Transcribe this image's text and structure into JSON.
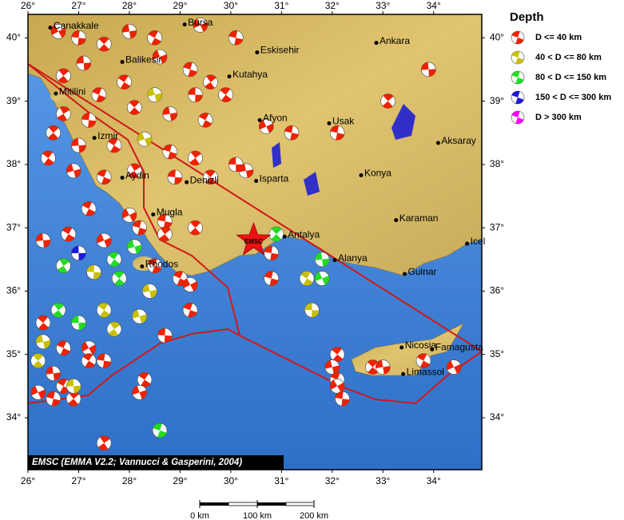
{
  "map": {
    "title": "Depth",
    "credit": "EMSC (EMMA V2.2; Vannucci & Gasperini, 2004)",
    "star_label": "EMSC",
    "xlim": [
      26,
      34.95
    ],
    "ylim": [
      33.18,
      40.37
    ],
    "xticks": [
      {
        "value": 26,
        "label": "26°"
      },
      {
        "value": 27,
        "label": "27°"
      },
      {
        "value": 28,
        "label": "28°"
      },
      {
        "value": 29,
        "label": "29°"
      },
      {
        "value": 30,
        "label": "30°"
      },
      {
        "value": 31,
        "label": "31°"
      },
      {
        "value": 32,
        "label": "32°"
      },
      {
        "value": 33,
        "label": "33°"
      },
      {
        "value": 34,
        "label": "34°"
      }
    ],
    "yticks": [
      {
        "value": 34,
        "label": "34°"
      },
      {
        "value": 35,
        "label": "35°"
      },
      {
        "value": 36,
        "label": "36°"
      },
      {
        "value": 37,
        "label": "37°"
      },
      {
        "value": 38,
        "label": "38°"
      },
      {
        "value": 39,
        "label": "39°"
      },
      {
        "value": 40,
        "label": "40°"
      }
    ],
    "depth_classes": [
      {
        "label": "D <= 40 km",
        "color": "#ee2200"
      },
      {
        "label": "40 < D <= 80 km",
        "color": "#c8c000"
      },
      {
        "label": "80 < D <= 150 km",
        "color": "#22dd22"
      },
      {
        "label": "150 < D <= 300 km",
        "color": "#1a1ad8"
      },
      {
        "label": "D > 300 km",
        "color": "#ff00ff"
      }
    ],
    "scale_bar": [
      "0 km",
      "100 km",
      "200 km"
    ],
    "cities": [
      {
        "name": "Canakkale",
        "lon": 26.44,
        "lat": 40.16
      },
      {
        "name": "Bursa",
        "lon": 29.09,
        "lat": 40.21
      },
      {
        "name": "Balikesir",
        "lon": 27.86,
        "lat": 39.62
      },
      {
        "name": "Eskisehir",
        "lon": 30.52,
        "lat": 39.77
      },
      {
        "name": "Ankara",
        "lon": 32.87,
        "lat": 39.92
      },
      {
        "name": "Kutahya",
        "lon": 29.97,
        "lat": 39.39
      },
      {
        "name": "Mitilini",
        "lon": 26.55,
        "lat": 39.12
      },
      {
        "name": "Afyon",
        "lon": 30.57,
        "lat": 38.7
      },
      {
        "name": "Usak",
        "lon": 31.94,
        "lat": 38.65
      },
      {
        "name": "Aksaray",
        "lon": 34.09,
        "lat": 38.34
      },
      {
        "name": "Izmir",
        "lon": 27.31,
        "lat": 38.42
      },
      {
        "name": "Aydin",
        "lon": 27.86,
        "lat": 37.79
      },
      {
        "name": "Denizli",
        "lon": 29.13,
        "lat": 37.72
      },
      {
        "name": "Isparta",
        "lon": 30.5,
        "lat": 37.74
      },
      {
        "name": "Konya",
        "lon": 32.57,
        "lat": 37.83
      },
      {
        "name": "Mugla",
        "lon": 28.47,
        "lat": 37.21
      },
      {
        "name": "Antalya",
        "lon": 31.06,
        "lat": 36.86
      },
      {
        "name": "Karaman",
        "lon": 33.26,
        "lat": 37.12
      },
      {
        "name": "Icel",
        "lon": 34.66,
        "lat": 36.75
      },
      {
        "name": "Rhodos",
        "lon": 28.25,
        "lat": 36.39
      },
      {
        "name": "Alanya",
        "lon": 32.05,
        "lat": 36.49
      },
      {
        "name": "Gulnar",
        "lon": 33.43,
        "lat": 36.27
      },
      {
        "name": "Nicosia",
        "lon": 33.37,
        "lat": 35.11
      },
      {
        "name": "Famagusta",
        "lon": 33.97,
        "lat": 35.08
      },
      {
        "name": "Limassol",
        "lon": 33.4,
        "lat": 34.69
      }
    ],
    "star": {
      "lon": 30.45,
      "lat": 36.8
    },
    "events": [
      {
        "lon": 26.6,
        "lat": 40.1,
        "depth": 0
      },
      {
        "lon": 27.0,
        "lat": 40.0,
        "depth": 0
      },
      {
        "lon": 27.5,
        "lat": 39.9,
        "depth": 0
      },
      {
        "lon": 28.0,
        "lat": 40.1,
        "depth": 0
      },
      {
        "lon": 28.5,
        "lat": 40.0,
        "depth": 0
      },
      {
        "lon": 29.4,
        "lat": 40.2,
        "depth": 0
      },
      {
        "lon": 30.1,
        "lat": 40.0,
        "depth": 0
      },
      {
        "lon": 26.7,
        "lat": 39.4,
        "depth": 0
      },
      {
        "lon": 27.1,
        "lat": 39.6,
        "depth": 0
      },
      {
        "lon": 27.9,
        "lat": 39.3,
        "depth": 0
      },
      {
        "lon": 28.6,
        "lat": 39.7,
        "depth": 0
      },
      {
        "lon": 29.2,
        "lat": 39.5,
        "depth": 0
      },
      {
        "lon": 29.6,
        "lat": 39.3,
        "depth": 0
      },
      {
        "lon": 29.3,
        "lat": 39.1,
        "depth": 0
      },
      {
        "lon": 29.9,
        "lat": 39.1,
        "depth": 0
      },
      {
        "lon": 28.5,
        "lat": 39.1,
        "depth": 1
      },
      {
        "lon": 27.4,
        "lat": 39.1,
        "depth": 0
      },
      {
        "lon": 26.7,
        "lat": 38.8,
        "depth": 0
      },
      {
        "lon": 27.2,
        "lat": 38.7,
        "depth": 0
      },
      {
        "lon": 28.1,
        "lat": 38.9,
        "depth": 0
      },
      {
        "lon": 28.8,
        "lat": 38.8,
        "depth": 0
      },
      {
        "lon": 29.5,
        "lat": 38.7,
        "depth": 0
      },
      {
        "lon": 30.7,
        "lat": 38.6,
        "depth": 0
      },
      {
        "lon": 31.2,
        "lat": 38.5,
        "depth": 0
      },
      {
        "lon": 26.5,
        "lat": 38.5,
        "depth": 0
      },
      {
        "lon": 27.0,
        "lat": 38.3,
        "depth": 0
      },
      {
        "lon": 27.7,
        "lat": 38.3,
        "depth": 0
      },
      {
        "lon": 28.3,
        "lat": 38.4,
        "depth": 1
      },
      {
        "lon": 28.8,
        "lat": 38.2,
        "depth": 0
      },
      {
        "lon": 29.3,
        "lat": 38.1,
        "depth": 0
      },
      {
        "lon": 30.1,
        "lat": 38.0,
        "depth": 0
      },
      {
        "lon": 26.4,
        "lat": 38.1,
        "depth": 0
      },
      {
        "lon": 26.9,
        "lat": 37.9,
        "depth": 0
      },
      {
        "lon": 27.5,
        "lat": 37.8,
        "depth": 0
      },
      {
        "lon": 28.1,
        "lat": 37.9,
        "depth": 0
      },
      {
        "lon": 28.9,
        "lat": 37.8,
        "depth": 0
      },
      {
        "lon": 29.6,
        "lat": 37.8,
        "depth": 0
      },
      {
        "lon": 30.3,
        "lat": 37.9,
        "depth": 0
      },
      {
        "lon": 27.2,
        "lat": 37.3,
        "depth": 0
      },
      {
        "lon": 28.0,
        "lat": 37.2,
        "depth": 0
      },
      {
        "lon": 28.7,
        "lat": 37.1,
        "depth": 0
      },
      {
        "lon": 29.3,
        "lat": 37.0,
        "depth": 0
      },
      {
        "lon": 26.3,
        "lat": 36.8,
        "depth": 0
      },
      {
        "lon": 26.8,
        "lat": 36.9,
        "depth": 0
      },
      {
        "lon": 27.5,
        "lat": 36.8,
        "depth": 0
      },
      {
        "lon": 28.2,
        "lat": 37.0,
        "depth": 0
      },
      {
        "lon": 28.7,
        "lat": 36.9,
        "depth": 0
      },
      {
        "lon": 27.0,
        "lat": 36.6,
        "depth": 3
      },
      {
        "lon": 27.7,
        "lat": 36.5,
        "depth": 2
      },
      {
        "lon": 28.1,
        "lat": 36.7,
        "depth": 2
      },
      {
        "lon": 28.5,
        "lat": 36.4,
        "depth": 0
      },
      {
        "lon": 26.7,
        "lat": 36.4,
        "depth": 2
      },
      {
        "lon": 27.3,
        "lat": 36.3,
        "depth": 1
      },
      {
        "lon": 27.8,
        "lat": 36.2,
        "depth": 2
      },
      {
        "lon": 28.4,
        "lat": 36.0,
        "depth": 1
      },
      {
        "lon": 29.0,
        "lat": 36.2,
        "depth": 0
      },
      {
        "lon": 29.2,
        "lat": 36.1,
        "depth": 0
      },
      {
        "lon": 30.8,
        "lat": 36.6,
        "depth": 0
      },
      {
        "lon": 30.9,
        "lat": 36.9,
        "depth": 2
      },
      {
        "lon": 31.8,
        "lat": 36.5,
        "depth": 2
      },
      {
        "lon": 31.5,
        "lat": 36.2,
        "depth": 1
      },
      {
        "lon": 31.8,
        "lat": 36.2,
        "depth": 2
      },
      {
        "lon": 30.8,
        "lat": 36.2,
        "depth": 0
      },
      {
        "lon": 26.6,
        "lat": 35.7,
        "depth": 2
      },
      {
        "lon": 27.0,
        "lat": 35.5,
        "depth": 2
      },
      {
        "lon": 27.5,
        "lat": 35.7,
        "depth": 1
      },
      {
        "lon": 28.2,
        "lat": 35.6,
        "depth": 1
      },
      {
        "lon": 29.2,
        "lat": 35.7,
        "depth": 0
      },
      {
        "lon": 27.7,
        "lat": 35.4,
        "depth": 1
      },
      {
        "lon": 28.7,
        "lat": 35.3,
        "depth": 0
      },
      {
        "lon": 26.3,
        "lat": 35.5,
        "depth": 0
      },
      {
        "lon": 26.3,
        "lat": 35.2,
        "depth": 1
      },
      {
        "lon": 26.7,
        "lat": 35.1,
        "depth": 0
      },
      {
        "lon": 27.2,
        "lat": 35.1,
        "depth": 0
      },
      {
        "lon": 27.5,
        "lat": 34.9,
        "depth": 0
      },
      {
        "lon": 26.2,
        "lat": 34.9,
        "depth": 1
      },
      {
        "lon": 26.5,
        "lat": 34.7,
        "depth": 0
      },
      {
        "lon": 26.7,
        "lat": 34.5,
        "depth": 0
      },
      {
        "lon": 26.2,
        "lat": 34.4,
        "depth": 0
      },
      {
        "lon": 26.5,
        "lat": 34.3,
        "depth": 0
      },
      {
        "lon": 26.9,
        "lat": 34.3,
        "depth": 0
      },
      {
        "lon": 26.9,
        "lat": 34.5,
        "depth": 1
      },
      {
        "lon": 28.3,
        "lat": 34.6,
        "depth": 0
      },
      {
        "lon": 28.2,
        "lat": 34.4,
        "depth": 0
      },
      {
        "lon": 28.6,
        "lat": 33.8,
        "depth": 2
      },
      {
        "lon": 27.5,
        "lat": 33.6,
        "depth": 0
      },
      {
        "lon": 31.6,
        "lat": 35.7,
        "depth": 1
      },
      {
        "lon": 32.1,
        "lat": 35.0,
        "depth": 0
      },
      {
        "lon": 32.0,
        "lat": 34.8,
        "depth": 0
      },
      {
        "lon": 32.1,
        "lat": 34.6,
        "depth": 0
      },
      {
        "lon": 32.1,
        "lat": 34.5,
        "depth": 0
      },
      {
        "lon": 32.2,
        "lat": 34.3,
        "depth": 0
      },
      {
        "lon": 32.8,
        "lat": 34.8,
        "depth": 0
      },
      {
        "lon": 33.0,
        "lat": 34.8,
        "depth": 0
      },
      {
        "lon": 33.8,
        "lat": 34.9,
        "depth": 0
      },
      {
        "lon": 34.4,
        "lat": 34.8,
        "depth": 0
      },
      {
        "lon": 32.1,
        "lat": 38.5,
        "depth": 0
      },
      {
        "lon": 33.1,
        "lat": 39.0,
        "depth": 0
      },
      {
        "lon": 33.9,
        "lat": 39.5,
        "depth": 0
      },
      {
        "lon": 27.2,
        "lat": 34.9,
        "depth": 0
      }
    ]
  }
}
